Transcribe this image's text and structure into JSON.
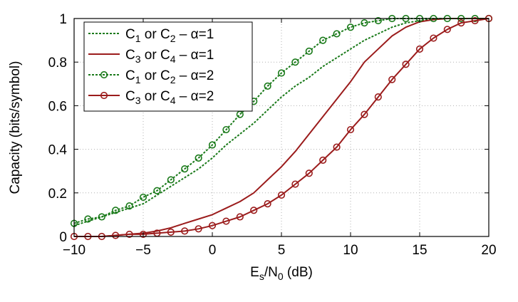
{
  "chart_data": {
    "type": "line",
    "xlabel": {
      "main": "E",
      "sub1": "s",
      "mid": "/N",
      "sub2": "0",
      "tail": " (dB)"
    },
    "ylabel": "Capacity (bits/symbol)",
    "xlim": [
      -10,
      20
    ],
    "ylim": [
      0,
      1
    ],
    "xticks": [
      "−10",
      "−5",
      "0",
      "5",
      "10",
      "15",
      "20"
    ],
    "xtick_values": [
      -10,
      -5,
      0,
      5,
      10,
      15,
      20
    ],
    "yticks": [
      "0",
      "0.2",
      "0.4",
      "0.6",
      "0.8",
      "1"
    ],
    "ytick_values": [
      0,
      0.2,
      0.4,
      0.6,
      0.8,
      1
    ],
    "grid": true,
    "legend_position": "top-left",
    "series": [
      {
        "legend": {
          "a": "C",
          "a_sub": "1",
          "mid": " or C",
          "b_sub": "2",
          "tail": " – α=1"
        },
        "color": "#1a7a1a",
        "line": "dashed",
        "marker": "none",
        "x": [
          -10,
          -9,
          -8,
          -7,
          -6,
          -5,
          -4,
          -3,
          -2,
          -1,
          0,
          1,
          2,
          3,
          4,
          5,
          6,
          7,
          8,
          9,
          10,
          11,
          12,
          13,
          14,
          15,
          16,
          17,
          18,
          19,
          20
        ],
        "y": [
          0.05,
          0.07,
          0.09,
          0.11,
          0.13,
          0.15,
          0.19,
          0.23,
          0.27,
          0.31,
          0.36,
          0.42,
          0.47,
          0.52,
          0.58,
          0.64,
          0.69,
          0.73,
          0.78,
          0.82,
          0.86,
          0.9,
          0.93,
          0.96,
          0.98,
          0.99,
          1.0,
          1.0,
          1.0,
          1.0,
          1.0
        ]
      },
      {
        "legend": {
          "a": "C",
          "a_sub": "3",
          "mid": " or C",
          "b_sub": "4",
          "tail": " – α=1"
        },
        "color": "#9b1c1c",
        "line": "solid",
        "marker": "none",
        "x": [
          -10,
          -9,
          -8,
          -7,
          -6,
          -5,
          -4,
          -3,
          -2,
          -1,
          0,
          1,
          2,
          3,
          4,
          5,
          6,
          7,
          8,
          9,
          10,
          11,
          12,
          13,
          14,
          15,
          16,
          17,
          18,
          19,
          20
        ],
        "y": [
          0.0,
          0.0,
          0.0,
          0.005,
          0.01,
          0.015,
          0.025,
          0.04,
          0.06,
          0.08,
          0.1,
          0.13,
          0.16,
          0.2,
          0.26,
          0.32,
          0.39,
          0.47,
          0.55,
          0.63,
          0.71,
          0.8,
          0.86,
          0.92,
          0.96,
          0.985,
          0.995,
          1.0,
          1.0,
          1.0,
          1.0
        ]
      },
      {
        "legend": {
          "a": "C",
          "a_sub": "1",
          "mid": " or C",
          "b_sub": "2",
          "tail": " – α=2"
        },
        "color": "#1a7a1a",
        "line": "dashed",
        "marker": "circle",
        "x": [
          -10,
          -9,
          -8,
          -7,
          -6,
          -5,
          -4,
          -3,
          -2,
          -1,
          0,
          1,
          2,
          3,
          4,
          5,
          6,
          7,
          8,
          9,
          10,
          11,
          12,
          13,
          14,
          15,
          16,
          17,
          18,
          19,
          20
        ],
        "y": [
          0.06,
          0.08,
          0.09,
          0.12,
          0.14,
          0.18,
          0.21,
          0.26,
          0.31,
          0.36,
          0.42,
          0.49,
          0.56,
          0.62,
          0.69,
          0.75,
          0.8,
          0.85,
          0.9,
          0.93,
          0.96,
          0.98,
          0.99,
          1.0,
          1.0,
          1.0,
          1.0,
          1.0,
          1.0,
          1.0,
          1.0
        ]
      },
      {
        "legend": {
          "a": "C",
          "a_sub": "3",
          "mid": " or C",
          "b_sub": "4",
          "tail": " – α=2"
        },
        "color": "#9b1c1c",
        "line": "solid",
        "marker": "circle",
        "x": [
          -10,
          -9,
          -8,
          -7,
          -6,
          -5,
          -4,
          -3,
          -2,
          -1,
          0,
          1,
          2,
          3,
          4,
          5,
          6,
          7,
          8,
          9,
          10,
          11,
          12,
          13,
          14,
          15,
          16,
          17,
          18,
          19,
          20
        ],
        "y": [
          0.0,
          0.0,
          0.0,
          0.005,
          0.01,
          0.01,
          0.015,
          0.02,
          0.025,
          0.035,
          0.05,
          0.07,
          0.09,
          0.12,
          0.15,
          0.19,
          0.24,
          0.29,
          0.35,
          0.41,
          0.49,
          0.56,
          0.64,
          0.72,
          0.79,
          0.86,
          0.91,
          0.95,
          0.98,
          0.99,
          1.0
        ]
      }
    ]
  }
}
